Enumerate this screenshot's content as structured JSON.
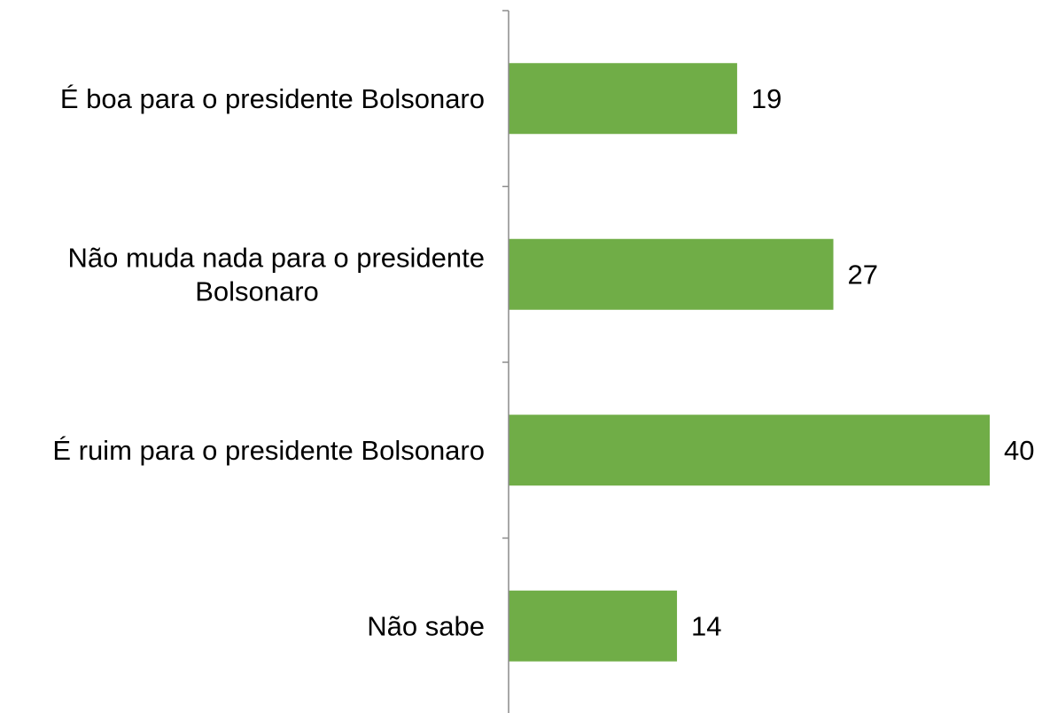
{
  "chart_data": {
    "type": "bar",
    "orientation": "horizontal",
    "categories": [
      [
        "É boa para o presidente Bolsonaro"
      ],
      [
        "Não muda nada para o presidente",
        "Bolsonaro"
      ],
      [
        "É ruim para o presidente Bolsonaro"
      ],
      [
        "Não sabe"
      ]
    ],
    "values": [
      19,
      27,
      40,
      14
    ],
    "data_labels": [
      "19",
      "27",
      "40",
      "14"
    ],
    "title": "",
    "xlabel": "",
    "ylabel": "",
    "xlim": [
      0,
      40
    ],
    "grid": false,
    "legend": "none",
    "bar_color": "#70ad47"
  }
}
